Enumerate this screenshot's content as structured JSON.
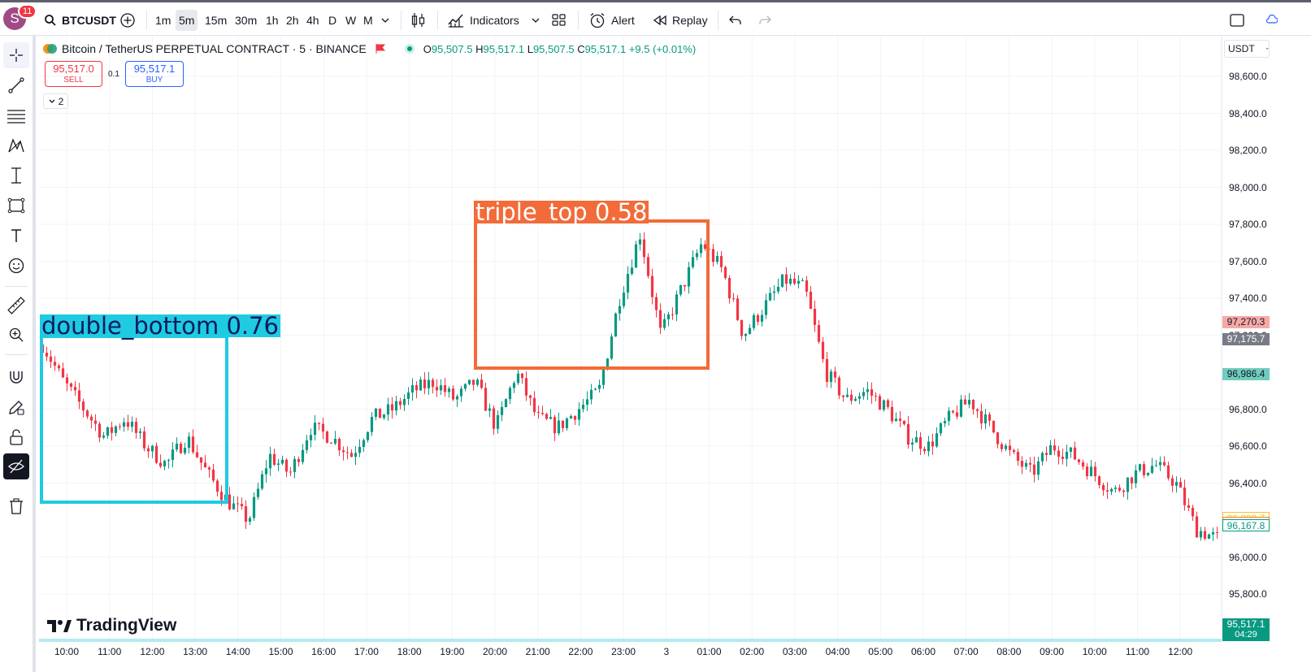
{
  "topbar": {
    "avatar_letter": "S",
    "notification_count": "11",
    "symbol": "BTCUSDT",
    "intervals": [
      "1m",
      "5m",
      "15m",
      "30m",
      "1h",
      "2h",
      "4h",
      "D",
      "W",
      "M"
    ],
    "active_interval": "5m",
    "indicators_label": "Indicators",
    "alert_label": "Alert",
    "replay_label": "Replay"
  },
  "legend": {
    "title": "Bitcoin / TetherUS PERPETUAL CONTRACT · 5 · BINANCE",
    "open_key": "O",
    "open": "95,507.5",
    "high_key": "H",
    "high": "95,517.1",
    "low_key": "L",
    "low": "95,507.5",
    "close_key": "C",
    "close": "95,517.1",
    "change": "+9.5 (+0.01%)",
    "sell_price": "95,517.0",
    "sell_label": "SELL",
    "buy_price": "95,517.1",
    "buy_label": "BUY",
    "spread": "0.1",
    "collapsed_count": "2"
  },
  "price_scale": {
    "currency": "USDT",
    "ticks": [
      "98,600.0",
      "98,400.0",
      "98,200.0",
      "98,000.0",
      "97,800.0",
      "97,600.0",
      "97,400.0",
      "97,200.0",
      "96,800.0",
      "96,600.0",
      "96,400.0",
      "96,000.0",
      "95,800.0"
    ],
    "tags": [
      {
        "text": "97,270.3",
        "bg": "#f7a9a7",
        "fg": "#131722"
      },
      {
        "text": "97,175.7",
        "bg": "#787b86",
        "fg": "#ffffff"
      },
      {
        "text": "96,986.4",
        "bg": "#70ccbd",
        "fg": "#131722"
      },
      {
        "text": "96,209.7",
        "bg": "#ffffff",
        "fg": "#f7c325",
        "border": "#f7c325"
      },
      {
        "text": "96,180.4",
        "bg": "#ffffff",
        "fg": "#f57c00",
        "border": "#f57c00"
      },
      {
        "text": "96,167.8",
        "bg": "#ffffff",
        "fg": "#089981",
        "border": "#089981"
      }
    ],
    "last_price": "95,517.1",
    "countdown": "04:29"
  },
  "time_axis": [
    "10:00",
    "11:00",
    "12:00",
    "13:00",
    "14:00",
    "15:00",
    "16:00",
    "17:00",
    "18:00",
    "19:00",
    "20:00",
    "21:00",
    "22:00",
    "23:00",
    "3",
    "01:00",
    "02:00",
    "03:00",
    "04:00",
    "05:00",
    "06:00",
    "07:00",
    "08:00",
    "09:00",
    "10:00",
    "11:00",
    "12:00"
  ],
  "detections": [
    {
      "label": "double_bottom  0.76",
      "color": "#1ecbe1",
      "text_color": "#0d1b5e"
    },
    {
      "label": "triple_top  0.58",
      "color": "#f26b38",
      "text_color": "#ffffff"
    }
  ],
  "branding": {
    "logo_text": "TradingView"
  },
  "colors": {
    "up": "#089981",
    "down": "#f23645",
    "grid": "#f0f3fa"
  },
  "chart_data": {
    "type": "candlestick",
    "price_range": [
      95700,
      98700
    ],
    "series_close_path": [
      97150,
      96950,
      96800,
      96650,
      96750,
      96600,
      96500,
      96650,
      96450,
      96300,
      96200,
      96550,
      96450,
      96700,
      96650,
      96550,
      96750,
      96800,
      96900,
      96950,
      96850,
      96950,
      96700,
      97000,
      96750,
      96700,
      96800,
      96900,
      97400,
      97750,
      97200,
      97450,
      97700,
      97550,
      97200,
      97350,
      97500,
      97450,
      97000,
      96850,
      96900,
      96800,
      96650,
      96600,
      96750,
      96850,
      96700,
      96550,
      96450,
      96600,
      96550,
      96450,
      96350,
      96450,
      96500,
      96400,
      96150,
      96100
    ]
  }
}
